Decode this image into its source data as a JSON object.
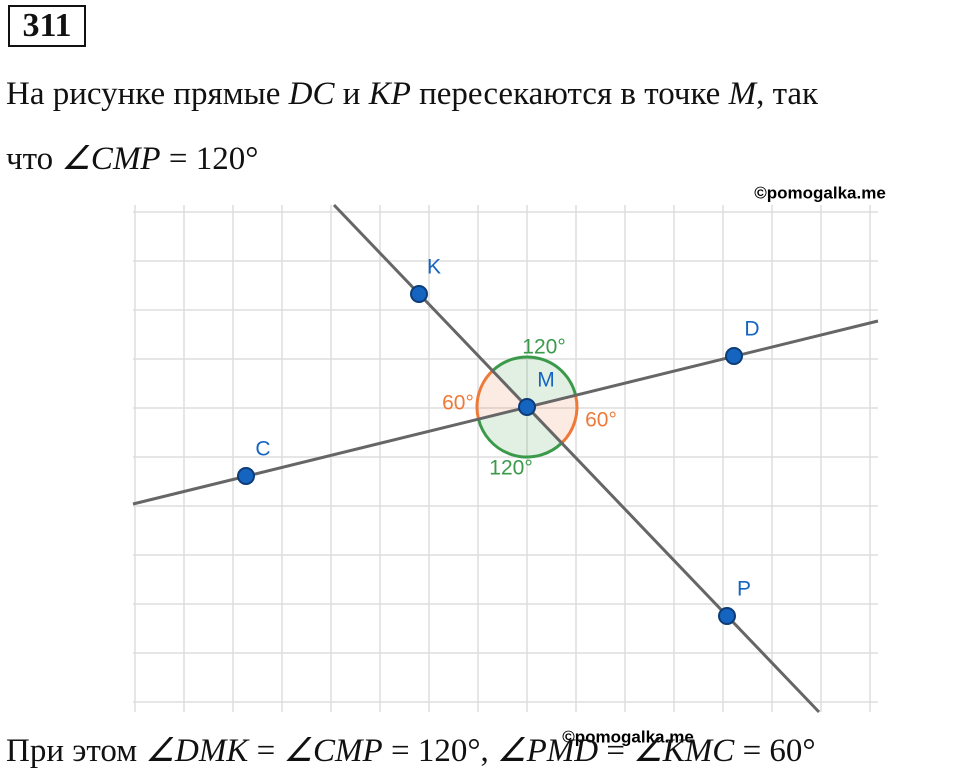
{
  "problem_number": "311",
  "statement": [
    [
      {
        "text": "На рисунке прямые "
      },
      {
        "text": "DC",
        "math": true
      },
      {
        "text": " и "
      },
      {
        "text": "KP",
        "math": true
      },
      {
        "text": " пересекаются в точке "
      },
      {
        "text": "M",
        "math": true
      },
      {
        "text": ", так"
      }
    ],
    [
      {
        "text": "что "
      },
      {
        "text": "∠CMP",
        "math": true
      },
      {
        "text": " = 120°"
      }
    ]
  ],
  "figure": {
    "points": [
      {
        "label": "K"
      },
      {
        "label": "D"
      },
      {
        "label": "M"
      },
      {
        "label": "C"
      },
      {
        "label": "P"
      }
    ],
    "angles": [
      {
        "label": "120°"
      },
      {
        "label": "60°"
      },
      {
        "label": "60°"
      },
      {
        "label": "120°"
      }
    ],
    "watermark": "©pomogalka.me"
  },
  "watermark_bottom": "©pomogalka.me",
  "answer": [
    {
      "text": "При этом "
    },
    {
      "text": "∠DMK",
      "math": true
    },
    {
      "text": " = "
    },
    {
      "text": "∠CMP",
      "math": true
    },
    {
      "text": " = 120°, "
    },
    {
      "text": "∠PMD",
      "math": true
    },
    {
      "text": " = "
    },
    {
      "text": "∠KMC",
      "math": true
    },
    {
      "text": " = 60°"
    }
  ]
}
